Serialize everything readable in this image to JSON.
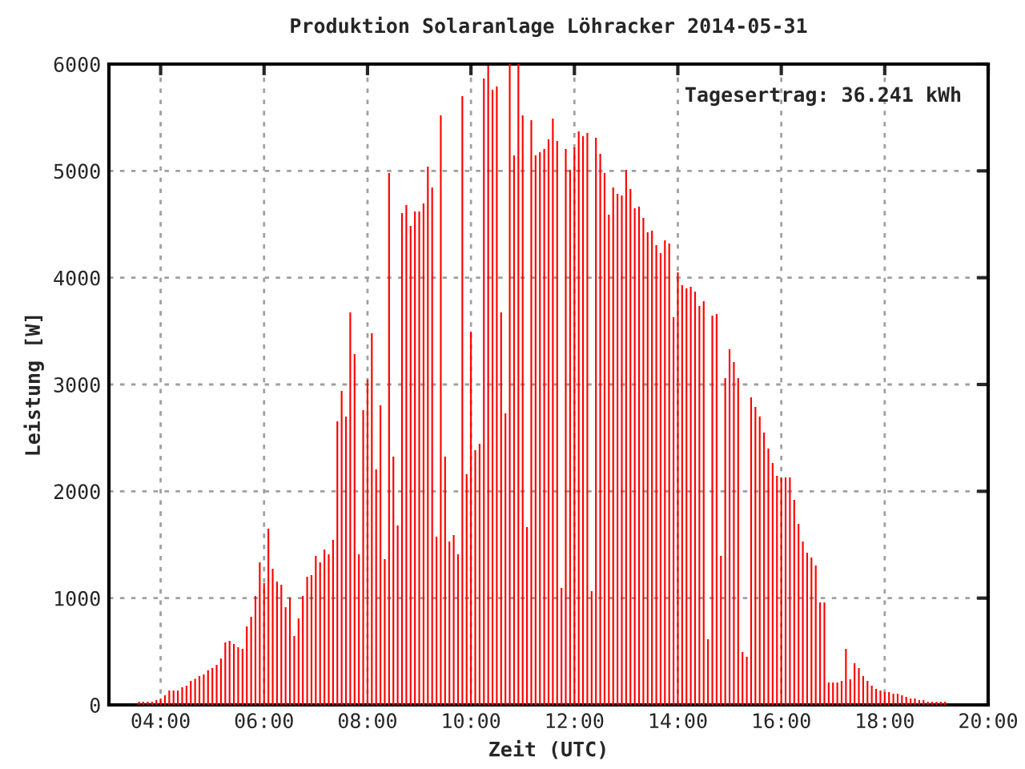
{
  "chart_data": {
    "type": "bar",
    "title": "Produktion Solaranlage Löhracker 2014-05-31",
    "xlabel": "Zeit (UTC)",
    "ylabel": "Leistung [W]",
    "annotations": [
      "Tagesertrag: 36.241 kWh"
    ],
    "x": [
      "2014-05-31T03:35",
      "2014-05-31T03:40",
      "2014-05-31T03:45",
      "2014-05-31T03:50",
      "2014-05-31T03:55",
      "2014-05-31T04:00",
      "2014-05-31T04:05",
      "2014-05-31T04:10",
      "2014-05-31T04:15",
      "2014-05-31T04:20",
      "2014-05-31T04:25",
      "2014-05-31T04:30",
      "2014-05-31T04:35",
      "2014-05-31T04:40",
      "2014-05-31T04:45",
      "2014-05-31T04:50",
      "2014-05-31T04:55",
      "2014-05-31T05:00",
      "2014-05-31T05:05",
      "2014-05-31T05:10",
      "2014-05-31T05:15",
      "2014-05-31T05:20",
      "2014-05-31T05:25",
      "2014-05-31T05:30",
      "2014-05-31T05:35",
      "2014-05-31T05:40",
      "2014-05-31T05:45",
      "2014-05-31T05:50",
      "2014-05-31T05:55",
      "2014-05-31T06:00",
      "2014-05-31T06:05",
      "2014-05-31T06:10",
      "2014-05-31T06:15",
      "2014-05-31T06:20",
      "2014-05-31T06:25",
      "2014-05-31T06:30",
      "2014-05-31T06:35",
      "2014-05-31T06:40",
      "2014-05-31T06:45",
      "2014-05-31T06:50",
      "2014-05-31T06:55",
      "2014-05-31T07:00",
      "2014-05-31T07:05",
      "2014-05-31T07:10",
      "2014-05-31T07:15",
      "2014-05-31T07:20",
      "2014-05-31T07:25",
      "2014-05-31T07:30",
      "2014-05-31T07:35",
      "2014-05-31T07:40",
      "2014-05-31T07:45",
      "2014-05-31T07:50",
      "2014-05-31T07:55",
      "2014-05-31T08:00",
      "2014-05-31T08:05",
      "2014-05-31T08:10",
      "2014-05-31T08:15",
      "2014-05-31T08:20",
      "2014-05-31T08:25",
      "2014-05-31T08:30",
      "2014-05-31T08:35",
      "2014-05-31T08:40",
      "2014-05-31T08:45",
      "2014-05-31T08:50",
      "2014-05-31T08:55",
      "2014-05-31T09:00",
      "2014-05-31T09:05",
      "2014-05-31T09:10",
      "2014-05-31T09:15",
      "2014-05-31T09:20",
      "2014-05-31T09:25",
      "2014-05-31T09:30",
      "2014-05-31T09:35",
      "2014-05-31T09:40",
      "2014-05-31T09:45",
      "2014-05-31T09:50",
      "2014-05-31T09:55",
      "2014-05-31T10:00",
      "2014-05-31T10:05",
      "2014-05-31T10:10",
      "2014-05-31T10:15",
      "2014-05-31T10:20",
      "2014-05-31T10:25",
      "2014-05-31T10:30",
      "2014-05-31T10:35",
      "2014-05-31T10:40",
      "2014-05-31T10:45",
      "2014-05-31T10:50",
      "2014-05-31T10:55",
      "2014-05-31T11:00",
      "2014-05-31T11:05",
      "2014-05-31T11:10",
      "2014-05-31T11:15",
      "2014-05-31T11:20",
      "2014-05-31T11:25",
      "2014-05-31T11:30",
      "2014-05-31T11:35",
      "2014-05-31T11:40",
      "2014-05-31T11:45",
      "2014-05-31T11:50",
      "2014-05-31T11:55",
      "2014-05-31T12:00",
      "2014-05-31T12:05",
      "2014-05-31T12:10",
      "2014-05-31T12:15",
      "2014-05-31T12:20",
      "2014-05-31T12:25",
      "2014-05-31T12:30",
      "2014-05-31T12:35",
      "2014-05-31T12:40",
      "2014-05-31T12:45",
      "2014-05-31T12:50",
      "2014-05-31T12:55",
      "2014-05-31T13:00",
      "2014-05-31T13:05",
      "2014-05-31T13:10",
      "2014-05-31T13:15",
      "2014-05-31T13:20",
      "2014-05-31T13:25",
      "2014-05-31T13:30",
      "2014-05-31T13:35",
      "2014-05-31T13:40",
      "2014-05-31T13:45",
      "2014-05-31T13:50",
      "2014-05-31T13:55",
      "2014-05-31T14:00",
      "2014-05-31T14:05",
      "2014-05-31T14:10",
      "2014-05-31T14:15",
      "2014-05-31T14:20",
      "2014-05-31T14:25",
      "2014-05-31T14:30",
      "2014-05-31T14:35",
      "2014-05-31T14:40",
      "2014-05-31T14:45",
      "2014-05-31T14:50",
      "2014-05-31T14:55",
      "2014-05-31T15:00",
      "2014-05-31T15:05",
      "2014-05-31T15:10",
      "2014-05-31T15:15",
      "2014-05-31T15:20",
      "2014-05-31T15:25",
      "2014-05-31T15:30",
      "2014-05-31T15:35",
      "2014-05-31T15:40",
      "2014-05-31T15:45",
      "2014-05-31T15:50",
      "2014-05-31T15:55",
      "2014-05-31T16:00",
      "2014-05-31T16:05",
      "2014-05-31T16:10",
      "2014-05-31T16:15",
      "2014-05-31T16:20",
      "2014-05-31T16:25",
      "2014-05-31T16:30",
      "2014-05-31T16:35",
      "2014-05-31T16:40",
      "2014-05-31T16:45",
      "2014-05-31T16:50",
      "2014-05-31T16:55",
      "2014-05-31T17:00",
      "2014-05-31T17:05",
      "2014-05-31T17:10",
      "2014-05-31T17:15",
      "2014-05-31T17:20",
      "2014-05-31T17:25",
      "2014-05-31T17:30",
      "2014-05-31T17:35",
      "2014-05-31T17:40",
      "2014-05-31T17:45",
      "2014-05-31T17:50",
      "2014-05-31T17:55",
      "2014-05-31T18:00",
      "2014-05-31T18:05",
      "2014-05-31T18:10",
      "2014-05-31T18:15",
      "2014-05-31T18:20",
      "2014-05-31T18:25",
      "2014-05-31T18:30",
      "2014-05-31T18:35",
      "2014-05-31T18:40",
      "2014-05-31T18:45",
      "2014-05-31T18:50",
      "2014-05-31T18:55",
      "2014-05-31T19:00",
      "2014-05-31T19:05",
      "2014-05-31T19:10"
    ],
    "values": [
      30,
      30,
      30,
      30,
      45,
      60,
      90,
      135,
      135,
      135,
      165,
      180,
      225,
      245,
      270,
      285,
      325,
      345,
      375,
      435,
      585,
      600,
      570,
      540,
      525,
      735,
      825,
      1020,
      1335,
      1140,
      1650,
      1275,
      1155,
      1125,
      915,
      1005,
      645,
      810,
      1020,
      1200,
      1215,
      1395,
      1335,
      1455,
      1410,
      1545,
      2655,
      2940,
      2700,
      3675,
      3285,
      1410,
      2760,
      3045,
      3480,
      2205,
      2805,
      1365,
      4980,
      2325,
      1680,
      4605,
      4680,
      4485,
      4620,
      4620,
      4695,
      5040,
      4845,
      1575,
      5520,
      2325,
      1530,
      1590,
      1410,
      5700,
      2160,
      3495,
      2385,
      2445,
      5865,
      5985,
      5760,
      5790,
      3675,
      2730,
      6000,
      5145,
      6000,
      5520,
      1665,
      5475,
      5145,
      5175,
      5205,
      5295,
      5490,
      5280,
      1095,
      5205,
      5010,
      5220,
      5370,
      5325,
      5355,
      1065,
      5310,
      5160,
      4980,
      4590,
      4845,
      4785,
      4770,
      5010,
      4830,
      4650,
      4665,
      4560,
      4425,
      4440,
      4305,
      4230,
      4350,
      4320,
      3630,
      4050,
      3930,
      3900,
      3915,
      3870,
      3735,
      3780,
      615,
      3645,
      3660,
      1395,
      3060,
      3330,
      3210,
      3060,
      495,
      450,
      2880,
      2790,
      2700,
      2550,
      2400,
      2265,
      2145,
      2130,
      2130,
      2130,
      1920,
      1695,
      1530,
      1425,
      1380,
      1305,
      960,
      960,
      210,
      210,
      210,
      225,
      525,
      240,
      390,
      345,
      270,
      225,
      180,
      150,
      135,
      120,
      120,
      105,
      105,
      90,
      75,
      60,
      60,
      45,
      45,
      30,
      30,
      30,
      30,
      30
    ],
    "color": "#ff0000",
    "xlim": [
      "2014-05-31T03:00",
      "2014-05-31T20:00"
    ],
    "xticks": [
      {
        "value": "2014-05-31T04:00",
        "label": "04:00"
      },
      {
        "value": "2014-05-31T06:00",
        "label": "06:00"
      },
      {
        "value": "2014-05-31T08:00",
        "label": "08:00"
      },
      {
        "value": "2014-05-31T10:00",
        "label": "10:00"
      },
      {
        "value": "2014-05-31T12:00",
        "label": "12:00"
      },
      {
        "value": "2014-05-31T14:00",
        "label": "14:00"
      },
      {
        "value": "2014-05-31T16:00",
        "label": "16:00"
      },
      {
        "value": "2014-05-31T18:00",
        "label": "18:00"
      },
      {
        "value": "2014-05-31T20:00",
        "label": "20:00"
      }
    ],
    "ylim": [
      0,
      6000
    ],
    "yticks": [
      0,
      1000,
      2000,
      3000,
      4000,
      5000,
      6000
    ],
    "grid": true
  }
}
